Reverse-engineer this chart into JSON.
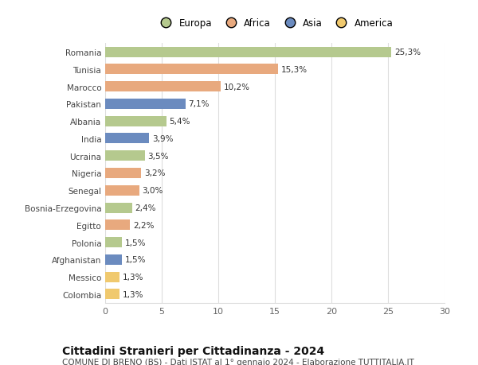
{
  "countries": [
    "Romania",
    "Tunisia",
    "Marocco",
    "Pakistan",
    "Albania",
    "India",
    "Ucraina",
    "Nigeria",
    "Senegal",
    "Bosnia-Erzegovina",
    "Egitto",
    "Polonia",
    "Afghanistan",
    "Messico",
    "Colombia"
  ],
  "values": [
    25.3,
    15.3,
    10.2,
    7.1,
    5.4,
    3.9,
    3.5,
    3.2,
    3.0,
    2.4,
    2.2,
    1.5,
    1.5,
    1.3,
    1.3
  ],
  "labels": [
    "25,3%",
    "15,3%",
    "10,2%",
    "7,1%",
    "5,4%",
    "3,9%",
    "3,5%",
    "3,2%",
    "3,0%",
    "2,4%",
    "2,2%",
    "1,5%",
    "1,5%",
    "1,3%",
    "1,3%"
  ],
  "continents": [
    "Europa",
    "Africa",
    "Africa",
    "Asia",
    "Europa",
    "Asia",
    "Europa",
    "Africa",
    "Africa",
    "Europa",
    "Africa",
    "Europa",
    "Asia",
    "America",
    "America"
  ],
  "colors": {
    "Europa": "#b5c98e",
    "Africa": "#e8a97e",
    "Asia": "#6b8bbf",
    "America": "#f0c96e"
  },
  "legend_order": [
    "Europa",
    "Africa",
    "Asia",
    "America"
  ],
  "title": "Cittadini Stranieri per Cittadinanza - 2024",
  "subtitle": "COMUNE DI BRENO (BS) - Dati ISTAT al 1° gennaio 2024 - Elaborazione TUTTITALIA.IT",
  "xlim": [
    0,
    30
  ],
  "xticks": [
    0,
    5,
    10,
    15,
    20,
    25,
    30
  ],
  "background_color": "#ffffff",
  "grid_color": "#dddddd",
  "bar_height": 0.6,
  "label_fontsize": 7.5,
  "title_fontsize": 10,
  "subtitle_fontsize": 7.5,
  "ytick_fontsize": 7.5,
  "xtick_fontsize": 8,
  "legend_fontsize": 8.5
}
